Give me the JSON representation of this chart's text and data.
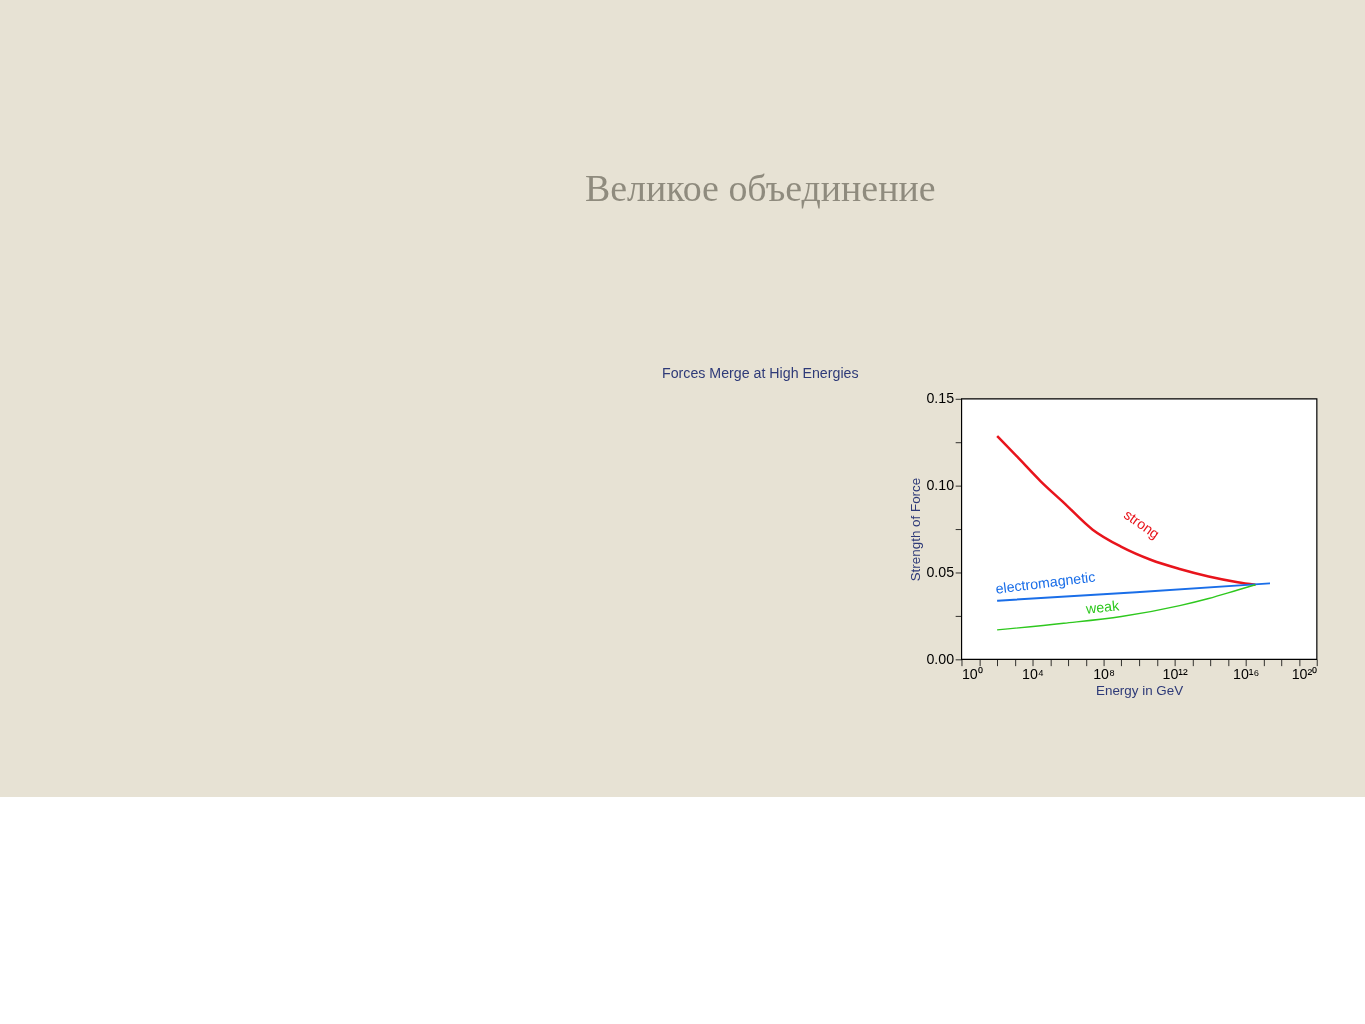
{
  "chart_data": {
    "type": "line",
    "title": "Великое объединение",
    "subtitle": "Forces Merge at High Energies",
    "xlabel": "Energy in GeV",
    "ylabel": "Strength of Force",
    "log": "x",
    "grid": false,
    "legend": false,
    "marker": "none",
    "line_style": "solid",
    "xlim": [
      1,
      1e+20
    ],
    "xticks": [
      {
        "value": 1,
        "label": "10⁰"
      },
      {
        "value": 10,
        "label": null
      },
      {
        "value": 100,
        "label": null
      },
      {
        "value": 1000,
        "label": null
      },
      {
        "value": 10000.0,
        "label": "10⁴"
      },
      {
        "value": 100000.0,
        "label": null
      },
      {
        "value": 1000000.0,
        "label": null
      },
      {
        "value": 10000000.0,
        "label": null
      },
      {
        "value": 100000000.0,
        "label": "10⁸"
      },
      {
        "value": 1000000000.0,
        "label": null
      },
      {
        "value": 10000000000.0,
        "label": null
      },
      {
        "value": 100000000000.0,
        "label": null
      },
      {
        "value": 1000000000000.0,
        "label": "10¹²"
      },
      {
        "value": 10000000000000.0,
        "label": null
      },
      {
        "value": 100000000000000.0,
        "label": null
      },
      {
        "value": 1000000000000000.0,
        "label": null
      },
      {
        "value": 1e+16,
        "label": "10¹⁶"
      },
      {
        "value": 1e+17,
        "label": null
      },
      {
        "value": 1e+18,
        "label": null
      },
      {
        "value": 1e+19,
        "label": null
      },
      {
        "value": 1e+20,
        "label": "10²⁰"
      }
    ],
    "ylim": [
      0,
      0.15
    ],
    "yticks": [
      {
        "value": 0,
        "label": "0.00"
      },
      {
        "value": 0.025,
        "label": null
      },
      {
        "value": 0.05,
        "label": "0.05"
      },
      {
        "value": 0.075,
        "label": null
      },
      {
        "value": 0.1,
        "label": "0.10"
      },
      {
        "value": 0.125,
        "label": null
      },
      {
        "value": 0.15,
        "label": "0.15"
      }
    ],
    "series": [
      {
        "name": "strong",
        "color": "#e8141c",
        "x": [
          100.0,
          1350.0,
          27500.0,
          560000.0,
          24000000.0,
          1000000000.0,
          44000000000.0,
          1900000000000.0,
          81000000000000.0,
          3500000000000000.0,
          3.5e+16
        ],
        "values": [
          0.1286,
          0.1167,
          0.1027,
          0.0903,
          0.0747,
          0.0648,
          0.0574,
          0.0521,
          0.0478,
          0.0445,
          0.043
        ]
      },
      {
        "name": "electromagnetic",
        "color": "#1a6ee8",
        "x": [
          100.0,
          6800000000.0,
          2.3e+17
        ],
        "values": [
          0.0338,
          0.0387,
          0.0438
        ]
      },
      {
        "name": "weak",
        "color": "#2ec81e",
        "x": [
          100.0,
          560000.0,
          1000000000.0,
          1900000000000.0,
          81000000000000.0,
          3500000000000000.0,
          3.5e+16
        ],
        "values": [
          0.017,
          0.0208,
          0.0247,
          0.031,
          0.0351,
          0.04,
          0.043
        ]
      }
    ]
  }
}
